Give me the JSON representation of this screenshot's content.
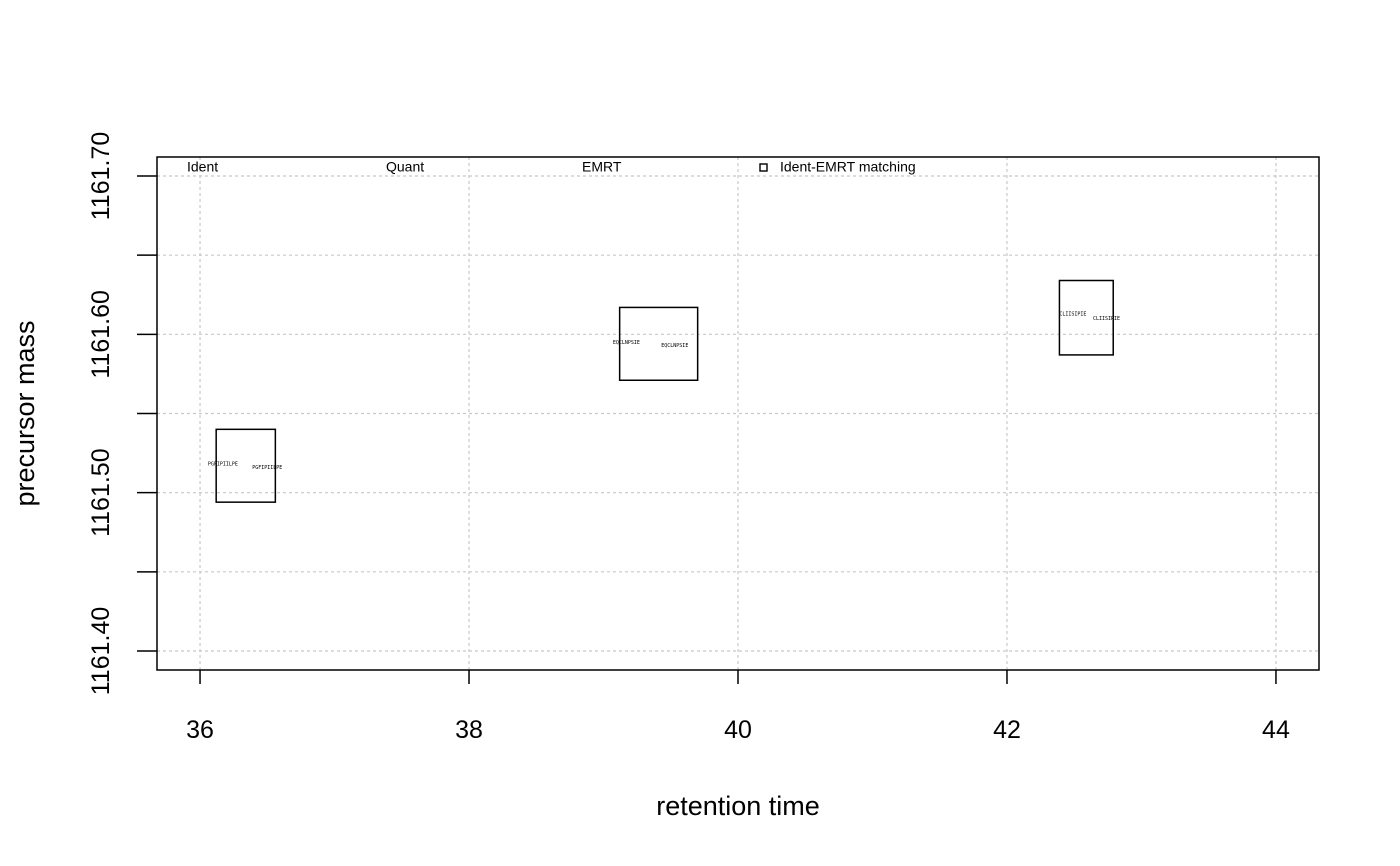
{
  "chart_data": {
    "type": "scatter",
    "xlabel": "retention time",
    "ylabel": "precursor mass",
    "xlim": [
      35.68,
      44.32
    ],
    "ylim": [
      1161.388,
      1161.712
    ],
    "x_ticks": [
      {
        "value": 36,
        "label": "36"
      },
      {
        "value": 38,
        "label": "38"
      },
      {
        "value": 40,
        "label": "40"
      },
      {
        "value": 42,
        "label": "42"
      },
      {
        "value": 44,
        "label": "44"
      }
    ],
    "y_ticks": [
      {
        "value": 1161.4,
        "label": "1161.40"
      },
      {
        "value": 1161.45,
        "label": ""
      },
      {
        "value": 1161.5,
        "label": "1161.50"
      },
      {
        "value": 1161.55,
        "label": ""
      },
      {
        "value": 1161.6,
        "label": "1161.60"
      },
      {
        "value": 1161.65,
        "label": ""
      },
      {
        "value": 1161.7,
        "label": "1161.70"
      }
    ],
    "grid": true,
    "legend": {
      "position": "top",
      "entries": [
        {
          "label": "Ident",
          "symbol": "none"
        },
        {
          "label": "Quant",
          "symbol": "none"
        },
        {
          "label": "EMRT",
          "symbol": "none"
        },
        {
          "label": "Ident-EMRT matching",
          "symbol": "square"
        }
      ]
    },
    "boxes": [
      {
        "x0": 36.12,
        "x1": 36.56,
        "y0": 1161.494,
        "y1": 1161.54
      },
      {
        "x0": 39.12,
        "x1": 39.7,
        "y0": 1161.571,
        "y1": 1161.617
      },
      {
        "x0": 42.39,
        "x1": 42.79,
        "y0": 1161.587,
        "y1": 1161.634
      }
    ],
    "points": [
      {
        "x": 36.17,
        "y": 1161.518,
        "label": "PGFIPIILPE"
      },
      {
        "x": 36.5,
        "y": 1161.516,
        "label": "PGFIPIILPE"
      },
      {
        "x": 39.17,
        "y": 1161.595,
        "label": "EQCLNPSIE"
      },
      {
        "x": 39.53,
        "y": 1161.593,
        "label": "EQCLNPSIE"
      },
      {
        "x": 42.49,
        "y": 1161.613,
        "label": "CLIISIPIE"
      },
      {
        "x": 42.74,
        "y": 1161.61,
        "label": "CLIISIPIE"
      }
    ]
  }
}
